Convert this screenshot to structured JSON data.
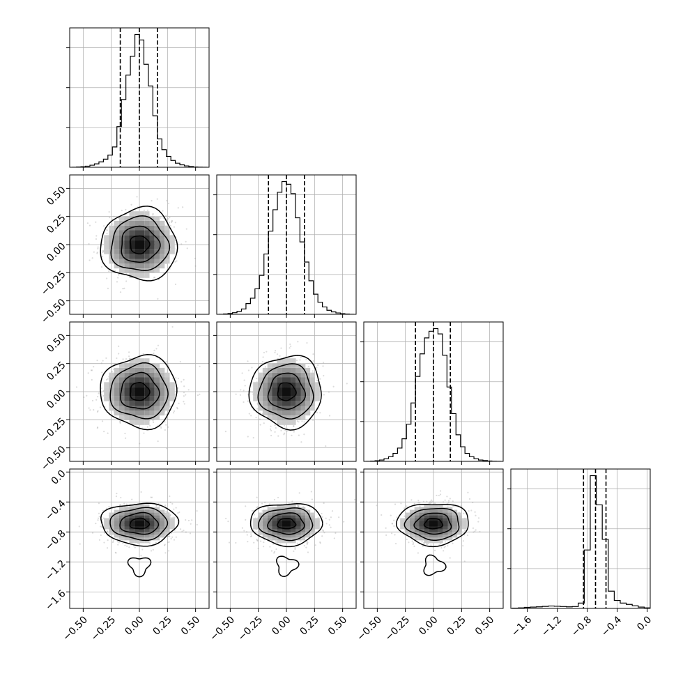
{
  "chart_data": {
    "type": "corner",
    "n_params": 4,
    "grid": true,
    "ranges": [
      [
        -0.62,
        0.62
      ],
      [
        -0.62,
        0.62
      ],
      [
        -0.62,
        0.62
      ],
      [
        -1.82,
        0.04
      ]
    ],
    "centers": [
      0.0,
      0.0,
      0.0,
      -0.69
    ],
    "sigmas": [
      0.17,
      0.16,
      0.16,
      0.14
    ],
    "quantiles": [
      [
        -0.17,
        0.0,
        0.16
      ],
      [
        -0.16,
        0.0,
        0.16
      ],
      [
        -0.16,
        0.0,
        0.15
      ],
      [
        -0.85,
        -0.69,
        -0.55
      ]
    ],
    "ticks": [
      [
        -0.5,
        -0.25,
        0.0,
        0.25,
        0.5
      ],
      [
        -0.5,
        -0.25,
        0.0,
        0.25,
        0.5
      ],
      [
        -0.5,
        -0.25,
        0.0,
        0.25,
        0.5
      ],
      [
        -1.6,
        -1.2,
        -0.8,
        -0.4,
        0.0
      ]
    ],
    "tick_labels": [
      [
        "−0.50",
        "−0.25",
        "0.00",
        "0.25",
        "0.50"
      ],
      [
        "−0.50",
        "−0.25",
        "0.00",
        "0.25",
        "0.50"
      ],
      [
        "−0.50",
        "−0.25",
        "0.00",
        "0.25",
        "0.50"
      ],
      [
        "−1.6",
        "−1.2",
        "−0.8",
        "−0.4",
        "0.0"
      ]
    ],
    "histograms": [
      {
        "bin_edges": [
          -0.6,
          -0.56,
          -0.52,
          -0.48,
          -0.44,
          -0.4,
          -0.36,
          -0.32,
          -0.28,
          -0.24,
          -0.2,
          -0.16,
          -0.12,
          -0.08,
          -0.04,
          0.0,
          0.04,
          0.08,
          0.12,
          0.16,
          0.2,
          0.24,
          0.28,
          0.32,
          0.36,
          0.4,
          0.44,
          0.48,
          0.52,
          0.56,
          0.6
        ],
        "counts": [
          0,
          2,
          4,
          8,
          15,
          25,
          40,
          60,
          90,
          150,
          300,
          500,
          680,
          820,
          980,
          940,
          760,
          600,
          380,
          210,
          130,
          80,
          50,
          30,
          18,
          10,
          5,
          2,
          1,
          0
        ]
      },
      {
        "bin_edges": [
          -0.6,
          -0.56,
          -0.52,
          -0.48,
          -0.44,
          -0.4,
          -0.36,
          -0.32,
          -0.28,
          -0.24,
          -0.2,
          -0.16,
          -0.12,
          -0.08,
          -0.04,
          0.0,
          0.04,
          0.08,
          0.12,
          0.16,
          0.2,
          0.24,
          0.28,
          0.32,
          0.36,
          0.4,
          0.44,
          0.48,
          0.52,
          0.56,
          0.6
        ],
        "counts": [
          0,
          3,
          6,
          12,
          22,
          40,
          80,
          120,
          190,
          290,
          450,
          620,
          780,
          910,
          990,
          970,
          900,
          720,
          540,
          390,
          250,
          150,
          90,
          55,
          30,
          18,
          10,
          5,
          2,
          0
        ]
      },
      {
        "bin_edges": [
          -0.6,
          -0.56,
          -0.52,
          -0.48,
          -0.44,
          -0.4,
          -0.36,
          -0.32,
          -0.28,
          -0.24,
          -0.2,
          -0.16,
          -0.12,
          -0.08,
          -0.04,
          0.0,
          0.04,
          0.08,
          0.12,
          0.16,
          0.2,
          0.24,
          0.28,
          0.32,
          0.36,
          0.4,
          0.44,
          0.48,
          0.52,
          0.56,
          0.6
        ],
        "counts": [
          0,
          2,
          5,
          10,
          20,
          35,
          60,
          100,
          170,
          280,
          440,
          640,
          810,
          930,
          980,
          1000,
          960,
          800,
          560,
          360,
          200,
          110,
          60,
          35,
          20,
          10,
          6,
          3,
          1,
          0
        ]
      },
      {
        "bin_edges": [
          -1.8,
          -1.72,
          -1.64,
          -1.56,
          -1.48,
          -1.4,
          -1.32,
          -1.24,
          -1.16,
          -1.08,
          -1.0,
          -0.92,
          -0.84,
          -0.76,
          -0.68,
          -0.6,
          -0.52,
          -0.44,
          -0.36,
          -0.28,
          -0.2,
          -0.12,
          -0.04,
          0.04
        ],
        "counts": [
          2,
          4,
          8,
          10,
          12,
          15,
          18,
          16,
          14,
          12,
          14,
          40,
          440,
          1000,
          780,
          520,
          130,
          60,
          40,
          30,
          20,
          10,
          4
        ]
      }
    ]
  }
}
